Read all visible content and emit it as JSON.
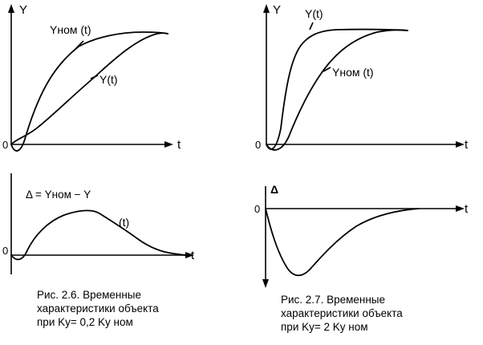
{
  "fig26": {
    "top": {
      "y_axis": "Y",
      "t_axis": "t",
      "origin": "0",
      "ynom_label": "Yном (t)",
      "y_label": "Y(t)"
    },
    "bottom": {
      "delta_formula": "Δ = Yном − Y",
      "t_label": "(t)",
      "t_axis": "t",
      "origin": "0"
    },
    "caption": {
      "line1": "Рис. 2.6.  Временные",
      "line2": "характеристики объекта",
      "line3": "при  Ky=  0,2  Ky ном"
    }
  },
  "fig27": {
    "top": {
      "y_axis": "Y",
      "t_axis": "t",
      "origin": "0",
      "y_label": "Y(t)",
      "ynom_label": "Yном (t)"
    },
    "bottom": {
      "delta_axis": "Δ",
      "t_axis": "t",
      "origin": "0"
    },
    "caption": {
      "line1": "Рис. 2.7.  Временные",
      "line2": "характеристики объекта",
      "line3": "при  Ky=  2  Ky ном"
    }
  },
  "chart_data": [
    {
      "type": "line",
      "series": [
        {
          "name": "Yном (t)"
        },
        {
          "name": "Y(t)"
        }
      ]
    },
    {
      "type": "line",
      "series": [
        {
          "name": "Δ = Yном − Y"
        }
      ]
    },
    {
      "type": "line",
      "series": [
        {
          "name": "Y(t)"
        },
        {
          "name": "Yном (t)"
        }
      ]
    },
    {
      "type": "line",
      "series": [
        {
          "name": "Δ"
        }
      ]
    }
  ]
}
